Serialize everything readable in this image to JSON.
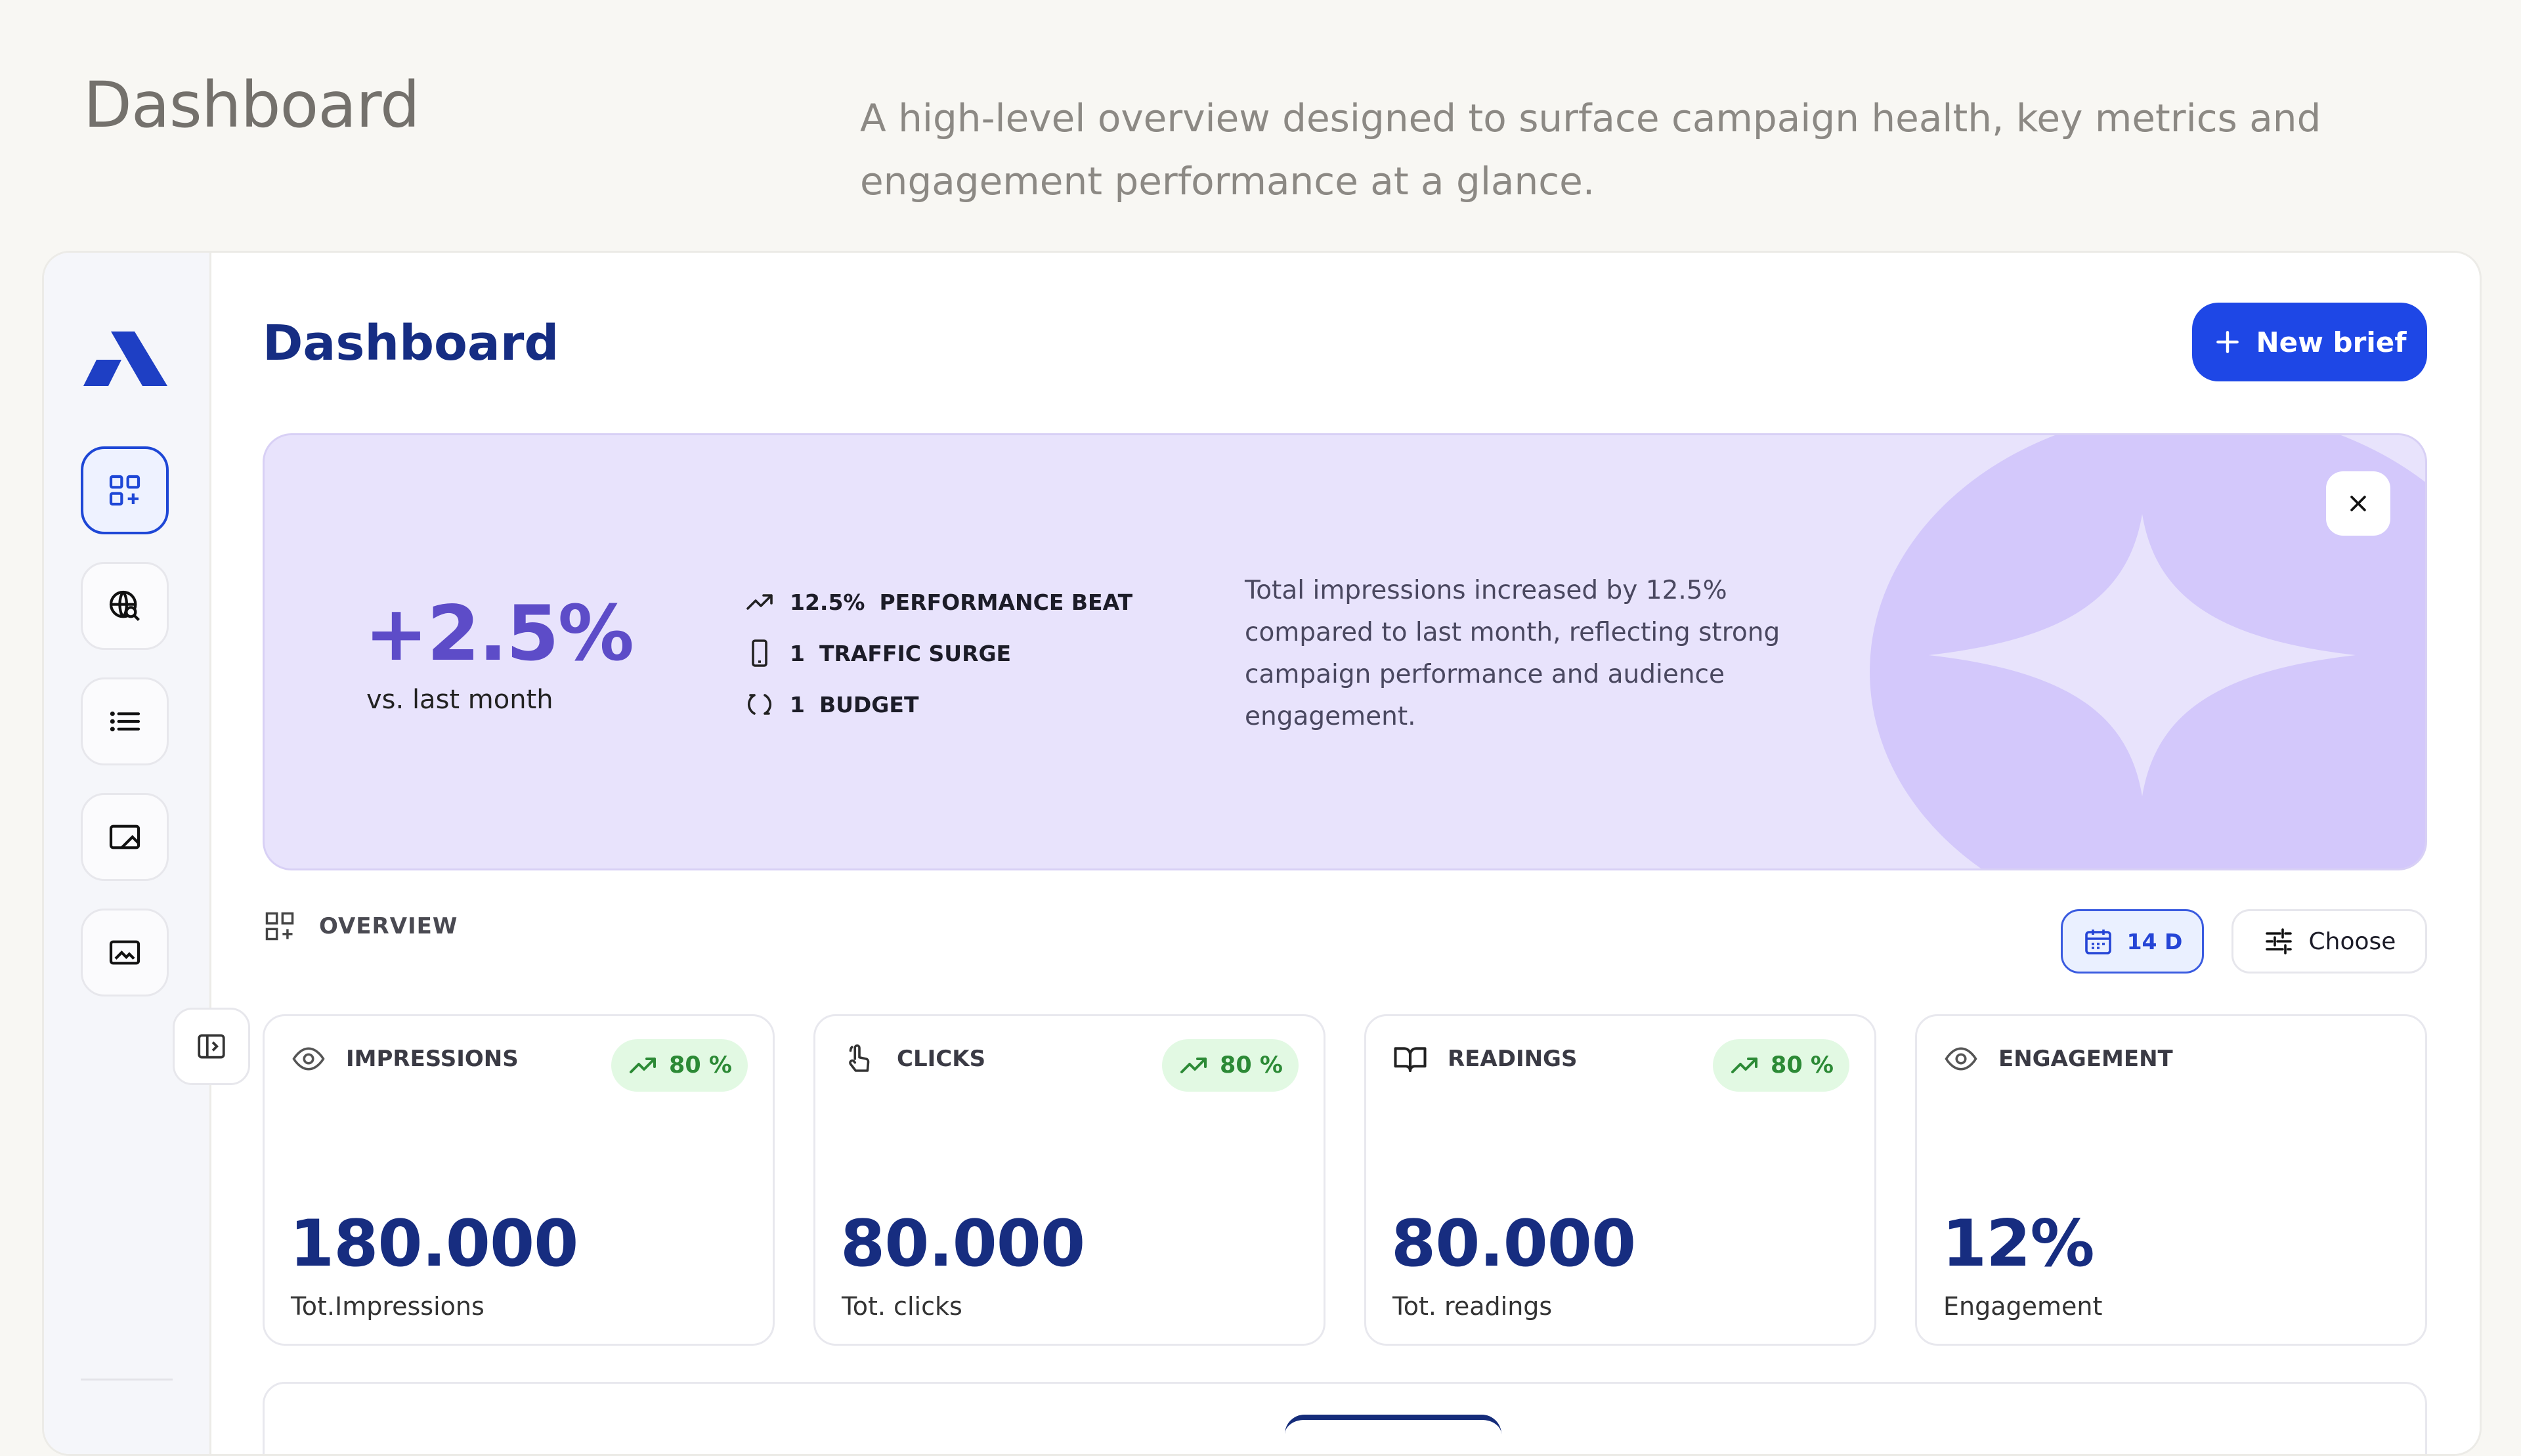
{
  "page": {
    "heading": "Dashboard",
    "subtitle": "A high-level overview designed to surface campaign health, key metrics and engagement performance at a glance."
  },
  "sidebar": {
    "items": [
      {
        "name": "dashboard-grid-icon",
        "active": true
      },
      {
        "name": "globe-search-icon",
        "active": false
      },
      {
        "name": "list-icon",
        "active": false
      },
      {
        "name": "media-icon",
        "active": false
      },
      {
        "name": "image-icon",
        "active": false
      }
    ],
    "collapse_icon": "sidebar-collapse-icon"
  },
  "header": {
    "title": "Dashboard",
    "new_brief_label": "New brief",
    "new_brief_icon": "plus-icon"
  },
  "banner": {
    "big_value": "+2.5%",
    "caption": "vs. last month",
    "stats": [
      {
        "icon": "trend-up-icon",
        "value": "12.5%",
        "label": "PERFORMANCE BEAT"
      },
      {
        "icon": "phone-icon",
        "value": "1",
        "label": "TRAFFIC SURGE"
      },
      {
        "icon": "refresh-icon",
        "value": "1",
        "label": "BUDGET"
      }
    ],
    "description": "Total impressions increased by 12.5% compared to last month, reflecting strong campaign performance and audience engagement.",
    "close_icon": "close-icon"
  },
  "overview": {
    "label": "OVERVIEW",
    "date_chip": "14 D",
    "choose_label": "Choose"
  },
  "metrics": [
    {
      "icon": "eye-icon",
      "title": "IMPRESSIONS",
      "trend": "80 %",
      "value": "180.000",
      "caption": "Tot.Impressions"
    },
    {
      "icon": "pointer-click-icon",
      "title": "CLICKS",
      "trend": "80 %",
      "value": "80.000",
      "caption": "Tot. clicks"
    },
    {
      "icon": "book-open-icon",
      "title": "READINGS",
      "trend": "80 %",
      "value": "80.000",
      "caption": "Tot. readings"
    },
    {
      "icon": "eye-icon",
      "title": "ENGAGEMENT",
      "trend": "",
      "value": "12%",
      "caption": "Engagement"
    }
  ],
  "colors": {
    "accent": "#1e47e6",
    "title": "#162d83",
    "banner_bg": "#e8e3fc",
    "banner_pct": "#5d4cc8",
    "trend_bg": "#e2f9e3",
    "trend_text": "#2c8a36"
  }
}
